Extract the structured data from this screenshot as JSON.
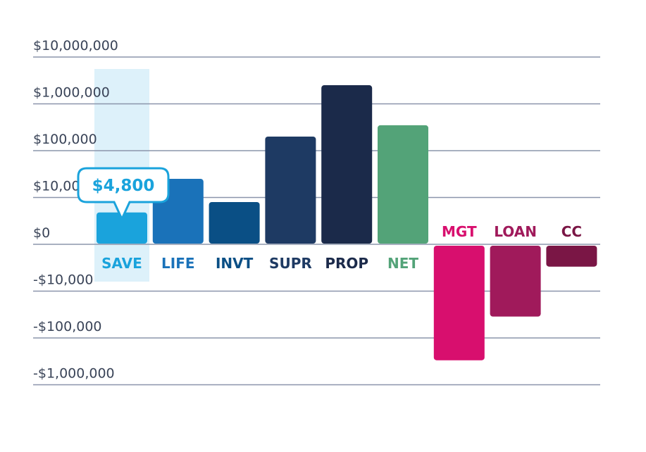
{
  "chart_data": {
    "type": "bar",
    "scale": "symlog",
    "title": "",
    "xlabel": "",
    "ylabel": "",
    "ylim": [
      -1000000,
      10000000
    ],
    "y_ticks": [
      {
        "value": 10000000,
        "label": "$10,000,000"
      },
      {
        "value": 1000000,
        "label": "$1,000,000"
      },
      {
        "value": 100000,
        "label": "$100,000"
      },
      {
        "value": 10000,
        "label": "$10,000"
      },
      {
        "value": 0,
        "label": "$0"
      },
      {
        "value": -10000,
        "label": "-$10,000"
      },
      {
        "value": -100000,
        "label": "-$100,000"
      },
      {
        "value": -1000000,
        "label": "-$1,000,000"
      }
    ],
    "bars": [
      {
        "label": "SAVE",
        "value": 4800,
        "color": "#1aa3dc",
        "label_color": "#1aa3dc",
        "highlighted": true
      },
      {
        "label": "LIFE",
        "value": 25000,
        "color": "#1a72b9",
        "label_color": "#1a72b9"
      },
      {
        "label": "INVT",
        "value": 8000,
        "color": "#0a4f85",
        "label_color": "#0a4f85"
      },
      {
        "label": "SUPR",
        "value": 200000,
        "color": "#1e3a63",
        "label_color": "#1e3a63"
      },
      {
        "label": "PROP",
        "value": 2500000,
        "color": "#1b2a4a",
        "label_color": "#1b2a4a"
      },
      {
        "label": "NET",
        "value": 350000,
        "color": "#53a378",
        "label_color": "#53a378"
      },
      {
        "label": "MGT",
        "value": -300000,
        "color": "#d80f6e",
        "label_color": "#d80f6e"
      },
      {
        "label": "LOAN",
        "value": -35000,
        "color": "#a01a5b",
        "label_color": "#a01a5b"
      },
      {
        "label": "CC",
        "value": -3000,
        "color": "#7a1645",
        "label_color": "#7a1645"
      }
    ],
    "tooltip": {
      "text": "$4,800",
      "target": "SAVE"
    },
    "grid": true
  },
  "colors": {
    "grid": "#8b95ab",
    "highlight": "#ddf1fa",
    "tick_text": "#3a4458"
  }
}
